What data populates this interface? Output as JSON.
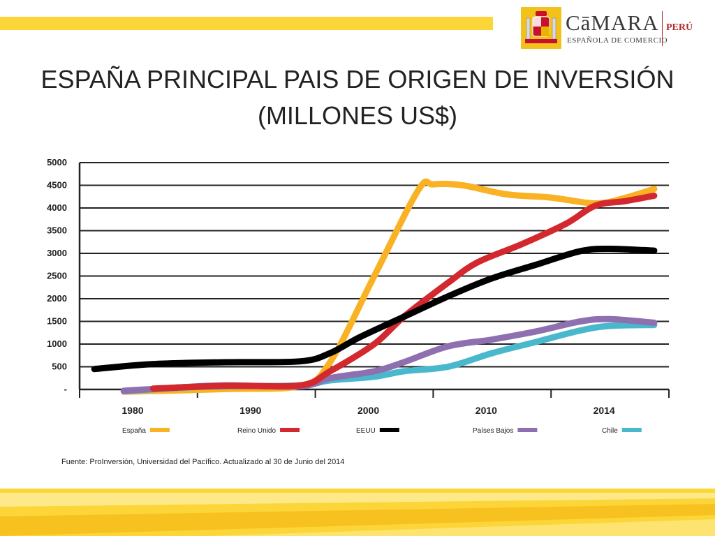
{
  "slide": {
    "title_line1": "ESPAÑA PRINCIPAL PAIS DE ORIGEN DE INVERSIÓN",
    "title_line2": "(MILLONES US$)",
    "source": "Fuente: ProInversión, Universidad del Pacífico. Actualizado al 30 de Junio del 2014"
  },
  "logo": {
    "name": "CāMARA",
    "subtitle": "ESPAÑOLA DE COMERCIO",
    "country": "PERÚ"
  },
  "colors": {
    "accent_yellow": "#fcd638",
    "espana": "#f9b223",
    "reino_unido": "#d4282f",
    "eeuu": "#000000",
    "paises_bajos": "#8e6fb0",
    "chile": "#4ab8cc"
  },
  "chart_data": {
    "type": "line",
    "x_ticks": [
      "1980",
      "1990",
      "2000",
      "2010",
      "2014"
    ],
    "y_ticks": [
      "5000",
      "4500",
      "4000",
      "3500",
      "3000",
      "2500",
      "2000",
      "1500",
      "1000",
      "500",
      "-"
    ],
    "ylim": [
      0,
      5000
    ],
    "xlim": [
      1975,
      2015
    ],
    "grid": true,
    "legend_position": "bottom",
    "series": [
      {
        "name": "España",
        "color": "#f9b223",
        "points": [
          [
            1978,
            -50
          ],
          [
            1985,
            10
          ],
          [
            1990,
            80
          ],
          [
            1992,
            600
          ],
          [
            1995,
            2500
          ],
          [
            1998,
            4400
          ],
          [
            1999,
            4520
          ],
          [
            2001,
            4500
          ],
          [
            2004,
            4300
          ],
          [
            2007,
            4230
          ],
          [
            2010,
            4100
          ],
          [
            2012,
            4220
          ],
          [
            2014,
            4420
          ]
        ]
      },
      {
        "name": "Reino Unido",
        "color": "#d4282f",
        "points": [
          [
            1980,
            20
          ],
          [
            1985,
            80
          ],
          [
            1990,
            90
          ],
          [
            1992,
            400
          ],
          [
            1995,
            1000
          ],
          [
            1997,
            1600
          ],
          [
            2000,
            2350
          ],
          [
            2002,
            2800
          ],
          [
            2005,
            3200
          ],
          [
            2008,
            3650
          ],
          [
            2010,
            4050
          ],
          [
            2012,
            4150
          ],
          [
            2014,
            4270
          ]
        ]
      },
      {
        "name": "EEUU",
        "color": "#000000",
        "points": [
          [
            1976,
            450
          ],
          [
            1980,
            560
          ],
          [
            1985,
            600
          ],
          [
            1990,
            620
          ],
          [
            1992,
            800
          ],
          [
            1994,
            1150
          ],
          [
            1997,
            1600
          ],
          [
            2000,
            2050
          ],
          [
            2003,
            2450
          ],
          [
            2006,
            2750
          ],
          [
            2009,
            3050
          ],
          [
            2011,
            3100
          ],
          [
            2014,
            3060
          ]
        ]
      },
      {
        "name": "Países Bajos",
        "color": "#8e6fb0",
        "points": [
          [
            1978,
            -30
          ],
          [
            1982,
            50
          ],
          [
            1985,
            90
          ],
          [
            1990,
            70
          ],
          [
            1992,
            250
          ],
          [
            1995,
            400
          ],
          [
            1997,
            600
          ],
          [
            2000,
            950
          ],
          [
            2003,
            1100
          ],
          [
            2006,
            1280
          ],
          [
            2009,
            1500
          ],
          [
            2011,
            1550
          ],
          [
            2014,
            1470
          ]
        ]
      },
      {
        "name": "Chile",
        "color": "#4ab8cc",
        "points": [
          [
            1978,
            -40
          ],
          [
            1982,
            40
          ],
          [
            1985,
            70
          ],
          [
            1990,
            90
          ],
          [
            1992,
            200
          ],
          [
            1995,
            280
          ],
          [
            1997,
            400
          ],
          [
            2000,
            500
          ],
          [
            2003,
            800
          ],
          [
            2006,
            1050
          ],
          [
            2009,
            1300
          ],
          [
            2011,
            1400
          ],
          [
            2014,
            1420
          ]
        ]
      }
    ]
  }
}
